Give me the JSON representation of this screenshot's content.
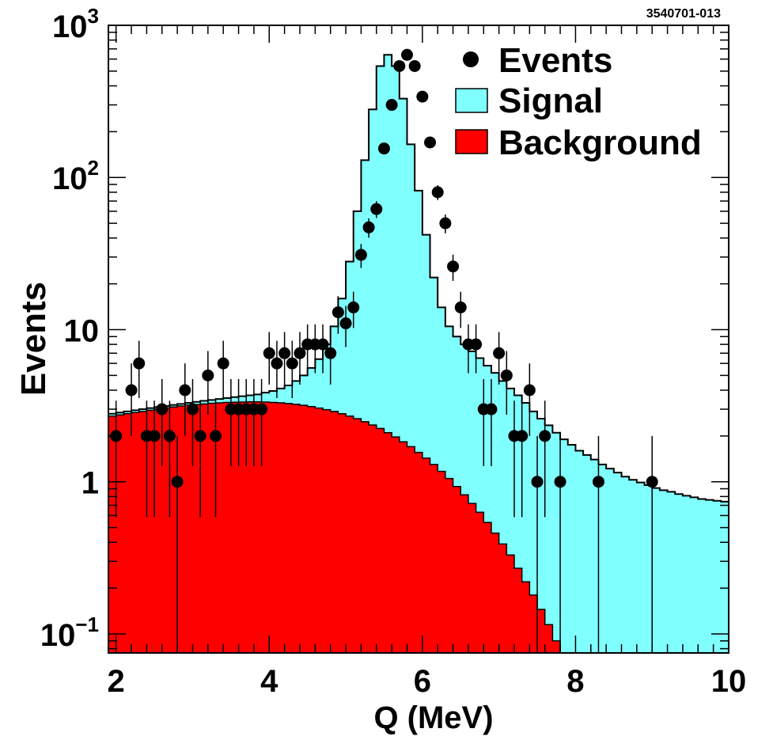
{
  "figure_id": "3540701-013",
  "chart_data": {
    "type": "histogram",
    "title": "",
    "xlabel": "Q (MeV)",
    "ylabel": "Events",
    "xlim": [
      1.9,
      10
    ],
    "ylim": [
      0.075,
      1000
    ],
    "yscale": "log",
    "x_ticks": [
      2,
      4,
      6,
      8,
      10
    ],
    "x_tick_labels": [
      "2",
      "4",
      "6",
      "8",
      "10"
    ],
    "y_ticks": [
      {
        "value": 0.1,
        "base": "10",
        "exp": "−1"
      },
      {
        "value": 1,
        "label": "1"
      },
      {
        "value": 10,
        "label": "10"
      },
      {
        "value": 100,
        "base": "10",
        "exp": "2"
      },
      {
        "value": 1000,
        "base": "10",
        "exp": "3"
      }
    ],
    "legend": {
      "position": "top-right",
      "entries": [
        {
          "label": "Events",
          "kind": "marker",
          "color": "#000000"
        },
        {
          "label": "Signal",
          "kind": "box",
          "color": "#80ffff"
        },
        {
          "label": "Background",
          "kind": "box",
          "color": "#ff0000"
        }
      ]
    },
    "colors": {
      "signal": "#80ffff",
      "background": "#ff0000",
      "events": "#000000"
    },
    "hist_bin_width": 0.1,
    "signal_total": {
      "bin_edges_start": 1.9,
      "values": [
        2.8,
        2.85,
        2.9,
        2.95,
        3.0,
        3.05,
        3.1,
        3.15,
        3.2,
        3.25,
        3.3,
        3.35,
        3.4,
        3.45,
        3.5,
        3.55,
        3.6,
        3.65,
        3.7,
        3.75,
        3.85,
        3.95,
        4.1,
        4.3,
        4.6,
        5.0,
        5.6,
        6.4,
        8.0,
        10.5,
        16,
        28,
        60,
        130,
        280,
        540,
        640,
        540,
        330,
        165,
        82,
        42,
        22,
        14,
        10.5,
        9,
        8,
        7.2,
        6.5,
        5.8,
        5.2,
        4.6,
        4.1,
        3.7,
        3.3,
        2.9,
        2.6,
        2.35,
        2.1,
        1.9,
        1.75,
        1.6,
        1.5,
        1.4,
        1.3,
        1.22,
        1.15,
        1.08,
        1.03,
        0.99,
        0.95,
        0.91,
        0.88,
        0.86,
        0.83,
        0.81,
        0.79,
        0.77,
        0.76,
        0.75,
        0.74
      ]
    },
    "background": {
      "bin_edges_start": 1.9,
      "values": [
        2.7,
        2.75,
        2.8,
        2.85,
        2.9,
        2.95,
        3.0,
        3.05,
        3.1,
        3.15,
        3.2,
        3.22,
        3.25,
        3.28,
        3.3,
        3.32,
        3.33,
        3.34,
        3.35,
        3.35,
        3.34,
        3.32,
        3.3,
        3.27,
        3.23,
        3.18,
        3.12,
        3.05,
        2.98,
        2.9,
        2.8,
        2.7,
        2.6,
        2.48,
        2.36,
        2.24,
        2.1,
        1.97,
        1.83,
        1.7,
        1.56,
        1.43,
        1.3,
        1.17,
        1.05,
        0.93,
        0.82,
        0.72,
        0.63,
        0.54,
        0.46,
        0.39,
        0.33,
        0.27,
        0.22,
        0.18,
        0.145,
        0.115,
        0.09,
        0.072
      ]
    },
    "events": {
      "x": [
        2.0,
        2.2,
        2.3,
        2.4,
        2.5,
        2.6,
        2.7,
        2.8,
        2.9,
        3.0,
        3.1,
        3.2,
        3.3,
        3.4,
        3.5,
        3.6,
        3.7,
        3.8,
        3.9,
        4.0,
        4.1,
        4.2,
        4.3,
        4.4,
        4.5,
        4.6,
        4.7,
        4.8,
        4.9,
        5.0,
        5.1,
        5.2,
        5.3,
        5.4,
        5.5,
        5.6,
        5.7,
        5.8,
        5.9,
        6.0,
        6.1,
        6.2,
        6.3,
        6.4,
        6.5,
        6.6,
        6.7,
        6.8,
        6.9,
        7.0,
        7.1,
        7.2,
        7.3,
        7.4,
        7.5,
        7.6,
        7.8,
        8.3,
        9.0
      ],
      "y": [
        2,
        4,
        6,
        2,
        2,
        3,
        2,
        1,
        4,
        3,
        2,
        5,
        2,
        6,
        3,
        3,
        3,
        3,
        3,
        7,
        6,
        7,
        6,
        7,
        8,
        8,
        8,
        7,
        13,
        11,
        14,
        31,
        47,
        62,
        155,
        300,
        540,
        640,
        540,
        340,
        170,
        80,
        50,
        26,
        14,
        8,
        8,
        3,
        3,
        7,
        5,
        2,
        2,
        4,
        1,
        2,
        1,
        1,
        1
      ]
    }
  }
}
